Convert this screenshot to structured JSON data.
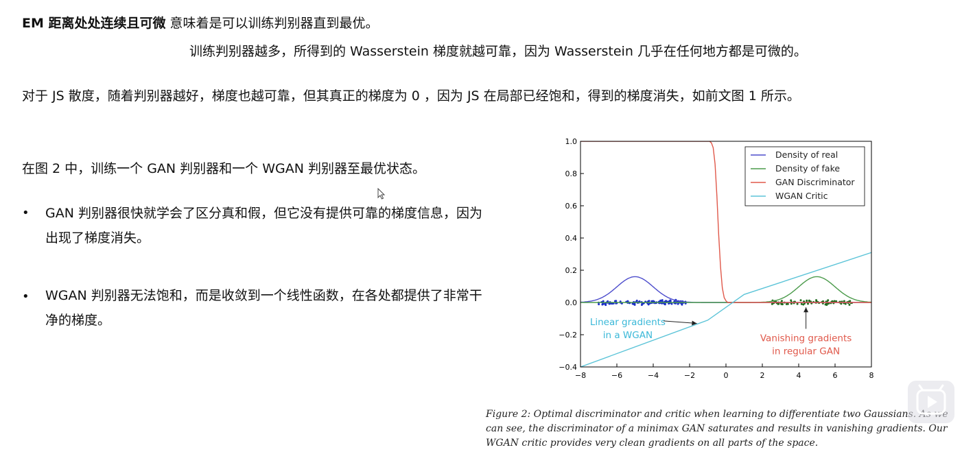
{
  "text": {
    "line1_bold": "EM 距离处处连续且可微",
    "line1_rest": " 意味着是可以训练判别器直到最优。",
    "line2": "训练判别器越多，所得到的 Wasserstein 梯度就越可靠，因为 Wasserstein 几乎在任何地方都是可微的。",
    "line3": "对于 JS 散度，随着判别器越好，梯度也越可靠，但其真正的梯度为 0 ，因为 JS 在局部已经饱和，得到的梯度消失，如前文图 1 所示。",
    "line4": "在图 2 中，训练一个 GAN 判别器和一个 WGAN 判别器至最优状态。",
    "bullet_char": "•",
    "bullet1": "GAN 判别器很快就学会了区分真和假，但它没有提供可靠的梯度信息，因为出现了梯度消失。",
    "bullet2": "WGAN 判别器无法饱和，而是收敛到一个线性函数，在各处都提供了非常干净的梯度。",
    "caption": "Figure 2: Optimal discriminator and critic when learning to differentiate two Gaussians. As we can see, the discriminator of a minimax GAN saturates and results in vanishing gradients. Our WGAN critic provides very clean gradients on all parts of the space."
  },
  "chart_data": {
    "type": "line",
    "xlim": [
      -8,
      8
    ],
    "ylim": [
      -0.4,
      1.0
    ],
    "xticks": [
      -8,
      -6,
      -4,
      -2,
      0,
      2,
      4,
      6,
      8
    ],
    "xtick_labels": [
      "−8",
      "−6",
      "−4",
      "−2",
      "0",
      "2",
      "4",
      "6",
      "8"
    ],
    "yticks": [
      -0.4,
      -0.2,
      0.0,
      0.2,
      0.4,
      0.6,
      0.8,
      1.0
    ],
    "ytick_labels": [
      "−0.4",
      "−0.2",
      "0.0",
      "0.2",
      "0.4",
      "0.6",
      "0.8",
      "1.0"
    ],
    "legend_position": "top-right",
    "series": [
      {
        "name": "Density of real",
        "color": "#4c4ccc",
        "x": [
          -8,
          -7.5,
          -7,
          -6.5,
          -6,
          -5.5,
          -5,
          -4.5,
          -4,
          -3.5,
          -3,
          -2.5,
          -2,
          -1,
          0,
          8
        ],
        "y": [
          0,
          0.004,
          0.018,
          0.052,
          0.097,
          0.141,
          0.16,
          0.141,
          0.097,
          0.052,
          0.018,
          0.004,
          0,
          0,
          0,
          0
        ]
      },
      {
        "name": "Density of fake",
        "color": "#4a9a4a",
        "x": [
          -8,
          0,
          2,
          2.5,
          3,
          3.5,
          4,
          4.5,
          5,
          5.5,
          6,
          6.5,
          7,
          7.5,
          8
        ],
        "y": [
          0,
          0,
          0,
          0.004,
          0.018,
          0.052,
          0.097,
          0.141,
          0.16,
          0.141,
          0.097,
          0.052,
          0.018,
          0.004,
          0
        ]
      },
      {
        "name": "GAN Discriminator",
        "color": "#e0584a",
        "x": [
          -8,
          -1.2,
          -0.9,
          -0.8,
          -0.7,
          -0.6,
          -0.5,
          -0.4,
          -0.3,
          -0.2,
          -0.1,
          0,
          0.1,
          8
        ],
        "y": [
          1,
          1,
          1,
          0.99,
          0.96,
          0.86,
          0.66,
          0.42,
          0.22,
          0.09,
          0.03,
          0.01,
          0,
          0
        ]
      },
      {
        "name": "WGAN Critic",
        "color": "#5cc4d8",
        "x": [
          -8,
          -1,
          1,
          8
        ],
        "y": [
          -0.4,
          -0.11,
          0.05,
          0.31
        ]
      }
    ],
    "scatter": [
      {
        "name": "real samples",
        "color": "#1a2ec8",
        "x_range": [
          -7,
          -2.2
        ],
        "count": 140
      },
      {
        "name": "fake samples",
        "color": "#1f6b1f",
        "x_range": [
          2.5,
          7
        ],
        "count": 90
      }
    ],
    "annotations": [
      {
        "text_lines": [
          "Linear gradients",
          "in a WGAN"
        ],
        "color": "#3ab8d8",
        "x": -5.4,
        "y": -0.14,
        "arrow_to": [
          -1.6,
          -0.13
        ]
      },
      {
        "text_lines": [
          "Vanishing gradients",
          "in regular GAN"
        ],
        "color": "#e0584a",
        "x": 4.4,
        "y": -0.24,
        "arrow_to": [
          4.4,
          -0.03
        ]
      }
    ]
  }
}
